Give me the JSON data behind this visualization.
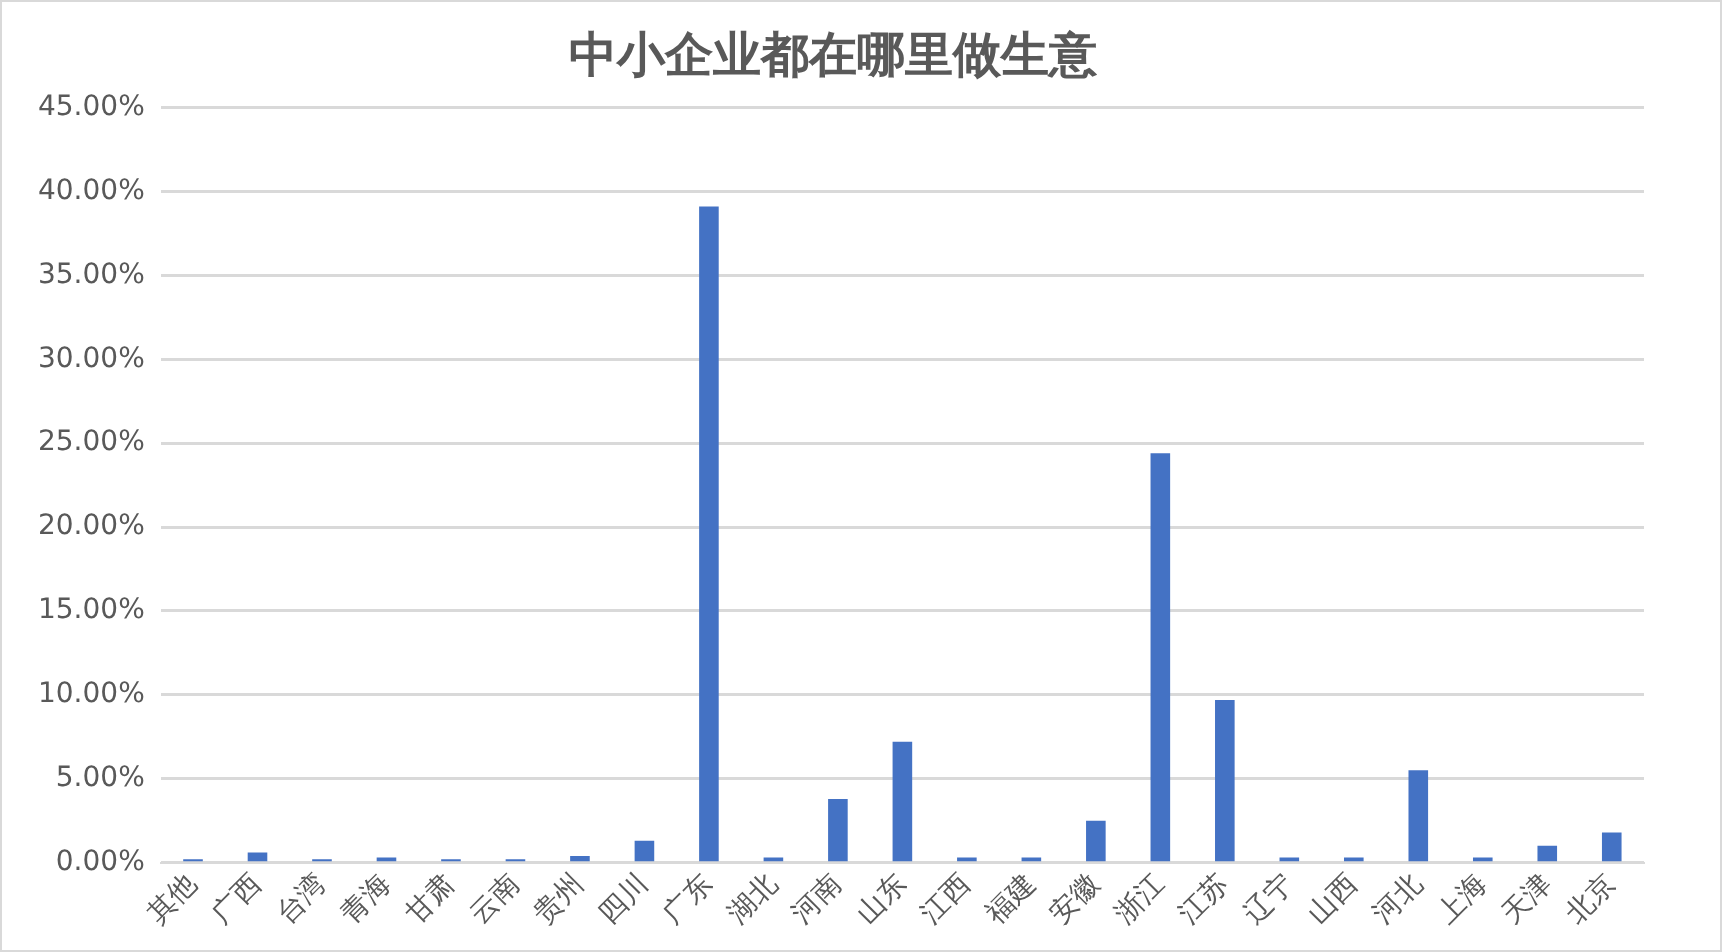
{
  "chart_data": {
    "type": "bar",
    "title": "中小企业都在哪里做生意",
    "categories": [
      "其他",
      "广西",
      "台湾",
      "青海",
      "甘肃",
      "云南",
      "贵州",
      "四川",
      "广东",
      "湖北",
      "河南",
      "山东",
      "江西",
      "福建",
      "安徽",
      "浙江",
      "江苏",
      "辽宁",
      "山西",
      "河北",
      "上海",
      "天津",
      "北京"
    ],
    "values": [
      0.2,
      0.6,
      0.2,
      0.3,
      0.2,
      0.2,
      0.4,
      1.3,
      39.1,
      0.3,
      3.8,
      7.2,
      0.3,
      0.3,
      2.5,
      24.4,
      9.7,
      0.3,
      0.3,
      5.5,
      0.3,
      1.0,
      1.8
    ],
    "color": "#4472c4",
    "ylim": [
      0,
      45
    ],
    "yticks": [
      {
        "value": 0,
        "label": "0.00%"
      },
      {
        "value": 5,
        "label": "5.00%"
      },
      {
        "value": 10,
        "label": "10.00%"
      },
      {
        "value": 15,
        "label": "15.00%"
      },
      {
        "value": 20,
        "label": "20.00%"
      },
      {
        "value": 25,
        "label": "25.00%"
      },
      {
        "value": 30,
        "label": "30.00%"
      },
      {
        "value": 35,
        "label": "35.00%"
      },
      {
        "value": 40,
        "label": "40.00%"
      },
      {
        "value": 45,
        "label": "45.00%"
      }
    ],
    "grid": "y"
  }
}
